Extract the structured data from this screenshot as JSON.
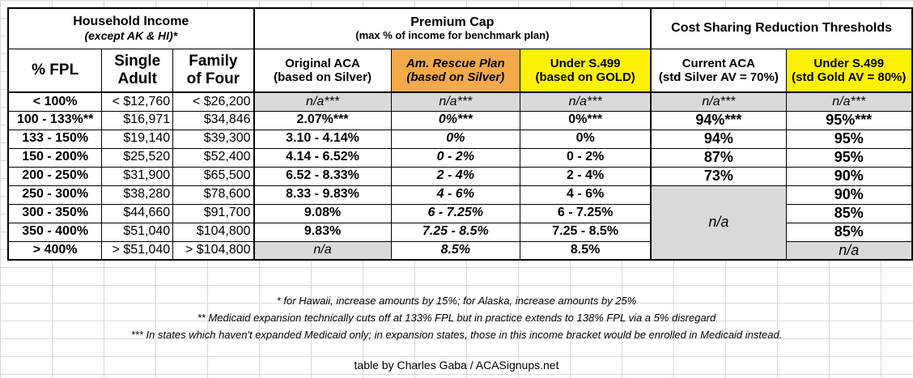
{
  "headers": {
    "household_income": "Household Income",
    "household_income_sub": "(except AK & HI)*",
    "premium_cap": "Premium Cap",
    "premium_cap_sub": "(max % of income for benchmark plan)",
    "csr": "Cost Sharing Reduction Thresholds",
    "fpl": "% FPL",
    "single_adult_1": "Single",
    "single_adult_2": "Adult",
    "family_1": "Family",
    "family_2": "of Four",
    "orig_aca_1": "Original ACA",
    "orig_aca_2": "(based on Silver)",
    "arp_1": "Am. Rescue Plan",
    "arp_2": "(based on Silver)",
    "s499_1": "Under S.499",
    "s499_2": "(based on GOLD)",
    "cur_aca_1": "Current ACA",
    "cur_aca_2": "(std Silver AV = 70%)",
    "s499csr_1": "Under S.499",
    "s499csr_2": "(std Gold AV = 80%)"
  },
  "rows": [
    {
      "fpl": "< 100%",
      "single": "< $12,760",
      "family": "< $26,200",
      "orig": "n/a***",
      "arp": "n/a***",
      "s499": "n/a***",
      "csr_cur": "n/a***",
      "csr_s499": "n/a***"
    },
    {
      "fpl": "100 - 133%**",
      "single": "$16,971",
      "family": "$34,846",
      "orig": "2.07%***",
      "arp": "0%***",
      "s499": "0%***",
      "csr_cur": "94%***",
      "csr_s499": "95%***"
    },
    {
      "fpl": "133 - 150%",
      "single": "$19,140",
      "family": "$39,300",
      "orig": "3.10 - 4.14%",
      "arp": "0%",
      "s499": "0%",
      "csr_cur": "94%",
      "csr_s499": "95%"
    },
    {
      "fpl": "150 - 200%",
      "single": "$25,520",
      "family": "$52,400",
      "orig": "4.14 - 6.52%",
      "arp": "0 - 2%",
      "s499": "0 - 2%",
      "csr_cur": "87%",
      "csr_s499": "95%"
    },
    {
      "fpl": "200 - 250%",
      "single": "$31,900",
      "family": "$65,500",
      "orig": "6.52 - 8.33%",
      "arp": "2 - 4%",
      "s499": "2 - 4%",
      "csr_cur": "73%",
      "csr_s499": "90%"
    },
    {
      "fpl": "250 - 300%",
      "single": "$38,280",
      "family": "$78,600",
      "orig": "8.33 - 9.83%",
      "arp": "4 - 6%",
      "s499": "4 - 6%",
      "csr_s499": "90%"
    },
    {
      "fpl": "300 - 350%",
      "single": "$44,660",
      "family": "$91,700",
      "orig": "9.08%",
      "arp": "6 - 7.25%",
      "s499": "6 - 7.25%",
      "csr_s499": "85%"
    },
    {
      "fpl": "350 - 400%",
      "single": "$51,040",
      "family": "$104,800",
      "orig": "9.83%",
      "arp": "7.25 - 8.5%",
      "s499": "7.25 - 8.5%",
      "csr_s499": "85%"
    },
    {
      "fpl": "> 400%",
      "single": "> $51,040",
      "family": "> $104,800",
      "orig": "n/a",
      "arp": "8.5%",
      "s499": "8.5%",
      "csr_s499": "n/a"
    }
  ],
  "csr_cur_merged": "n/a",
  "notes": [
    "* for Hawaii, increase amounts by 15%; for Alaska, increase amounts by 25%",
    "** Medicaid expansion technically cuts off at 133% FPL but in practice extends to 138% FPL via a 5% disregard",
    "*** In states which haven't expanded Medicaid only; in expansion states, those in this income bracket would be enrolled in Medicaid instead."
  ],
  "credit": "table by Charles Gaba / ACASignups.net",
  "colors": {
    "gray": "#d9d9d9",
    "orange": "#f4a94a",
    "yellow": "#fff200"
  }
}
